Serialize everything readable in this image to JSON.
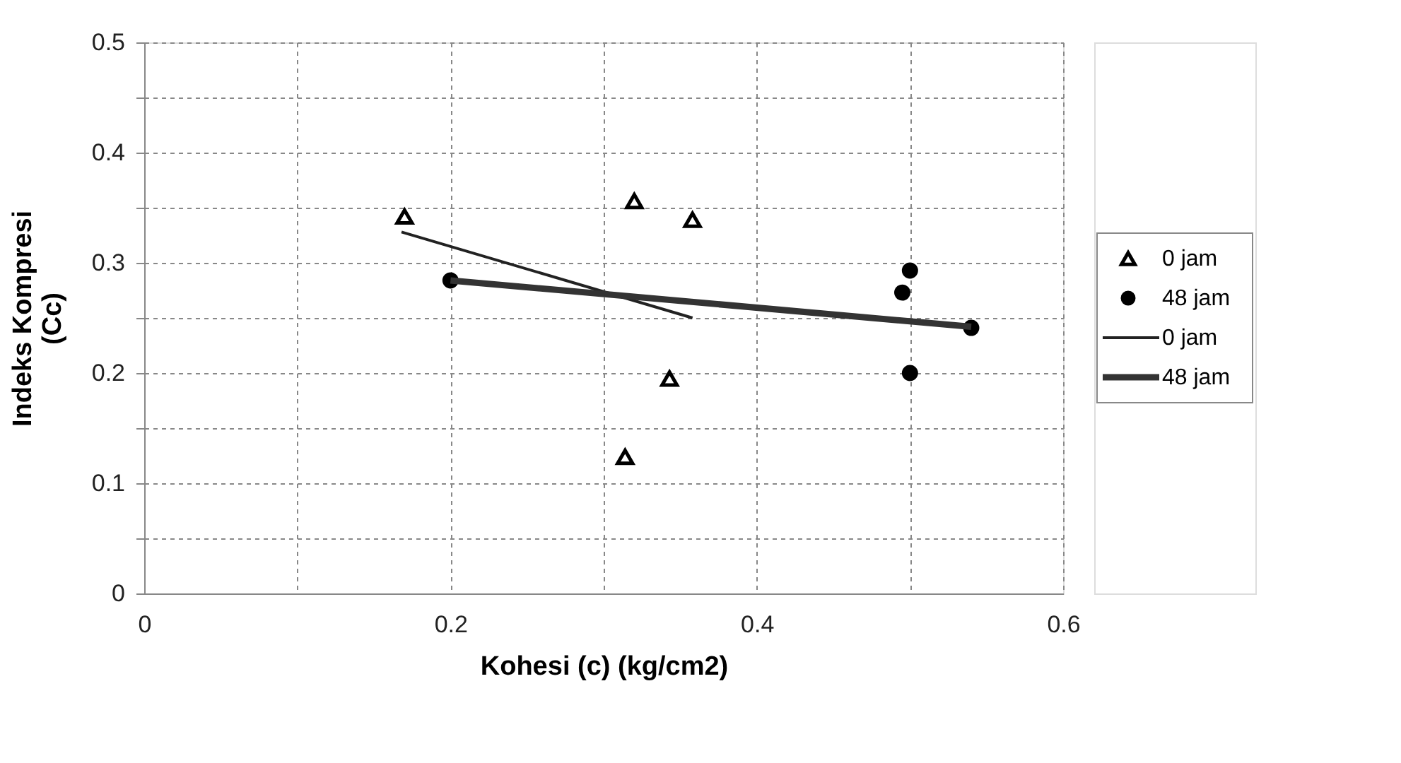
{
  "chart_data": {
    "type": "scatter",
    "xlabel": "Kohesi (c) (kg/cm2)",
    "ylabel": "Indeks Kompresi\n(Cc)",
    "xlim": [
      0,
      0.6
    ],
    "ylim": [
      0,
      0.5
    ],
    "xticks": [
      0,
      {
        "value": 0.1,
        "label": null
      },
      0.2,
      {
        "value": 0.3,
        "label": null
      },
      0.4,
      {
        "value": 0.5,
        "label": null
      },
      0.6
    ],
    "yticks": [
      0,
      {
        "value": 0.05,
        "label": null
      },
      0.1,
      {
        "value": 0.15,
        "label": null
      },
      0.2,
      {
        "value": 0.25,
        "label": null
      },
      0.3,
      {
        "value": 0.35,
        "label": null
      },
      0.4,
      {
        "value": 0.45,
        "label": null
      },
      0.5
    ],
    "grid": true,
    "legend": "right",
    "series": [
      {
        "name": "0 jam",
        "marker": "triangle",
        "color": "#000000",
        "x": [
          0.17,
          0.32,
          0.358,
          0.343,
          0.314
        ],
        "values": [
          0.342,
          0.356,
          0.339,
          0.195,
          0.124
        ]
      },
      {
        "name": "48 jam",
        "marker": "circle",
        "color": "#000000",
        "x": [
          0.2,
          0.5,
          0.495,
          0.54,
          0.5
        ],
        "values": [
          0.284,
          0.293,
          0.273,
          0.241,
          0.2
        ]
      },
      {
        "name": "0 jam",
        "type": "line",
        "marker": "none",
        "line_style": "solid",
        "color": "#222222",
        "x": [
          0.168,
          0.358
        ],
        "values": [
          0.328,
          0.25
        ]
      },
      {
        "name": "48 jam",
        "type": "line",
        "marker": "none",
        "line_style": "solid",
        "color": "#333333",
        "x": [
          0.2,
          0.54
        ],
        "values": [
          0.284,
          0.242
        ]
      }
    ]
  }
}
